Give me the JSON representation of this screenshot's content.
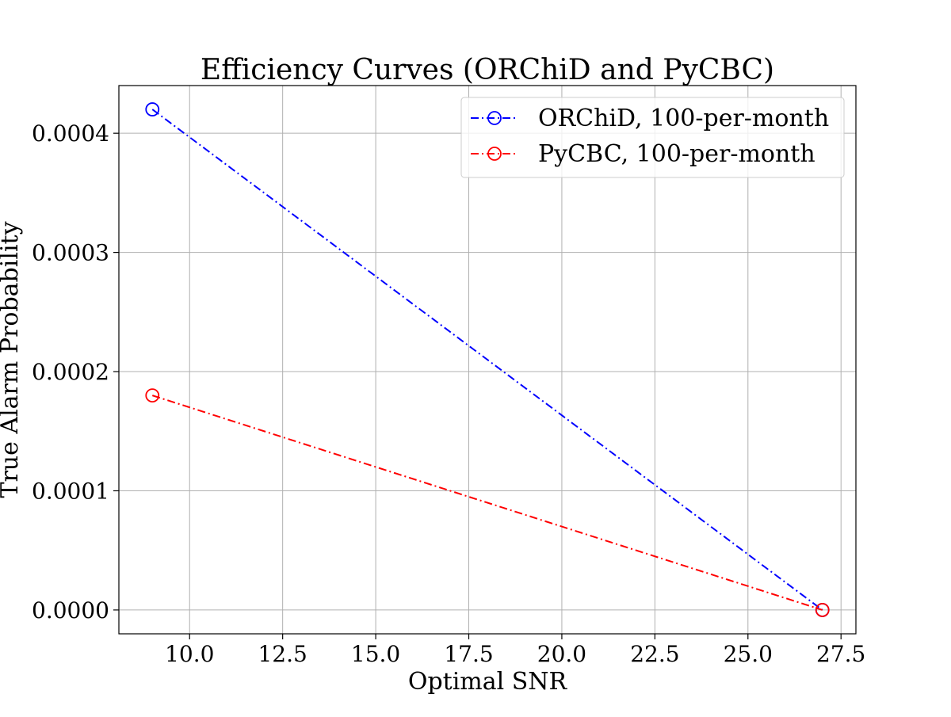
{
  "chart_data": {
    "type": "line",
    "title": "Efficiency Curves (ORChiD and PyCBC)",
    "xlabel": "Optimal SNR",
    "ylabel": "True Alarm Probability",
    "xlim": [
      8.1,
      27.9
    ],
    "ylim": [
      -2e-05,
      0.00044
    ],
    "xticks": [
      10.0,
      12.5,
      15.0,
      17.5,
      20.0,
      22.5,
      25.0,
      27.5
    ],
    "xtick_labels": [
      "10.0",
      "12.5",
      "15.0",
      "17.5",
      "20.0",
      "22.5",
      "25.0",
      "27.5"
    ],
    "yticks": [
      0.0,
      0.0001,
      0.0002,
      0.0003,
      0.0004
    ],
    "ytick_labels": [
      "0.0000",
      "0.0001",
      "0.0002",
      "0.0003",
      "0.0004"
    ],
    "grid": true,
    "legend_position": "top-right",
    "series": [
      {
        "name": "ORChiD, 100-per-month",
        "color": "#0000ff",
        "line_style": "dash-dot",
        "marker": "open-circle",
        "x": [
          9.0,
          27.0
        ],
        "y": [
          0.00042,
          0.0
        ]
      },
      {
        "name": "PyCBC, 100-per-month",
        "color": "#ff0000",
        "line_style": "dash-dot",
        "marker": "open-circle",
        "x": [
          9.0,
          27.0
        ],
        "y": [
          0.00018,
          0.0
        ]
      }
    ]
  }
}
